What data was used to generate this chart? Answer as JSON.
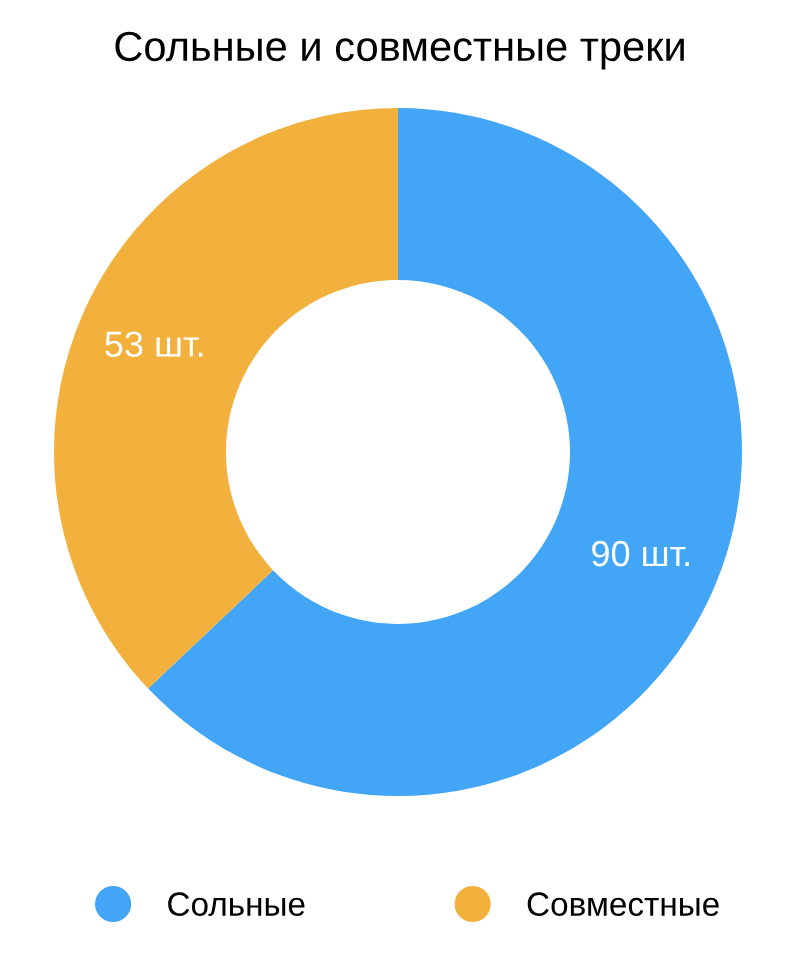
{
  "chart_data": {
    "type": "donut",
    "title": "Сольные и совместные треки",
    "categories": [
      "Сольные",
      "Совместные"
    ],
    "values": [
      90,
      53
    ],
    "colors": [
      "#42a5f5",
      "#f2b03d"
    ],
    "value_labels": [
      "90 шт.",
      "53 шт."
    ],
    "legend": "bottom"
  }
}
